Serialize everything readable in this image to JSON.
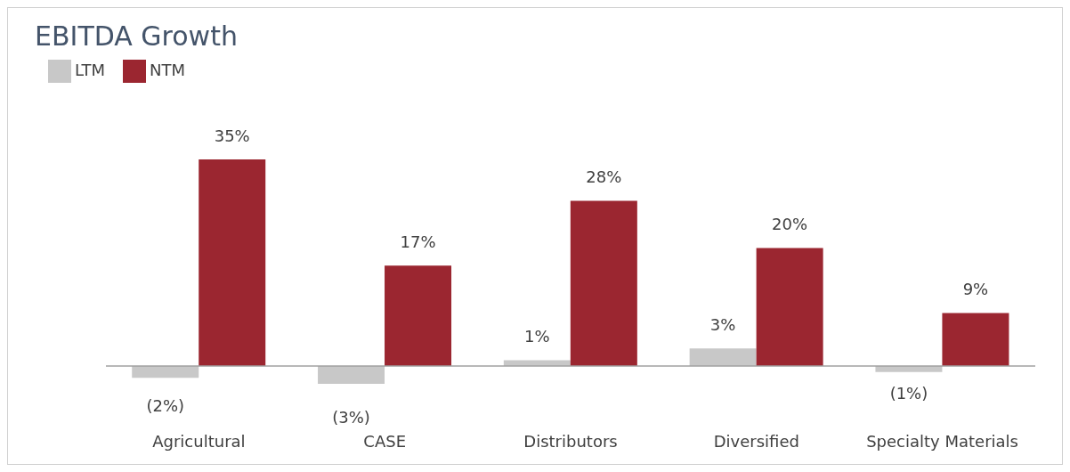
{
  "chart_data": {
    "type": "bar",
    "title": "EBITDA Growth",
    "categories": [
      "Agricultural",
      "CASE",
      "Distributors",
      "Diversified",
      "Specialty Materials"
    ],
    "series": [
      {
        "name": "LTM",
        "color": "#c8c8c8",
        "values": [
          -2,
          -3,
          1,
          3,
          -1
        ],
        "value_labels": [
          "(2%)",
          "(3%)",
          "1%",
          "3%",
          "(1%)"
        ]
      },
      {
        "name": "NTM",
        "color": "#9b2630",
        "values": [
          35,
          17,
          28,
          20,
          9
        ],
        "value_labels": [
          "35%",
          "17%",
          "28%",
          "20%",
          "9%"
        ]
      }
    ],
    "legend": "top left",
    "grid": false
  }
}
